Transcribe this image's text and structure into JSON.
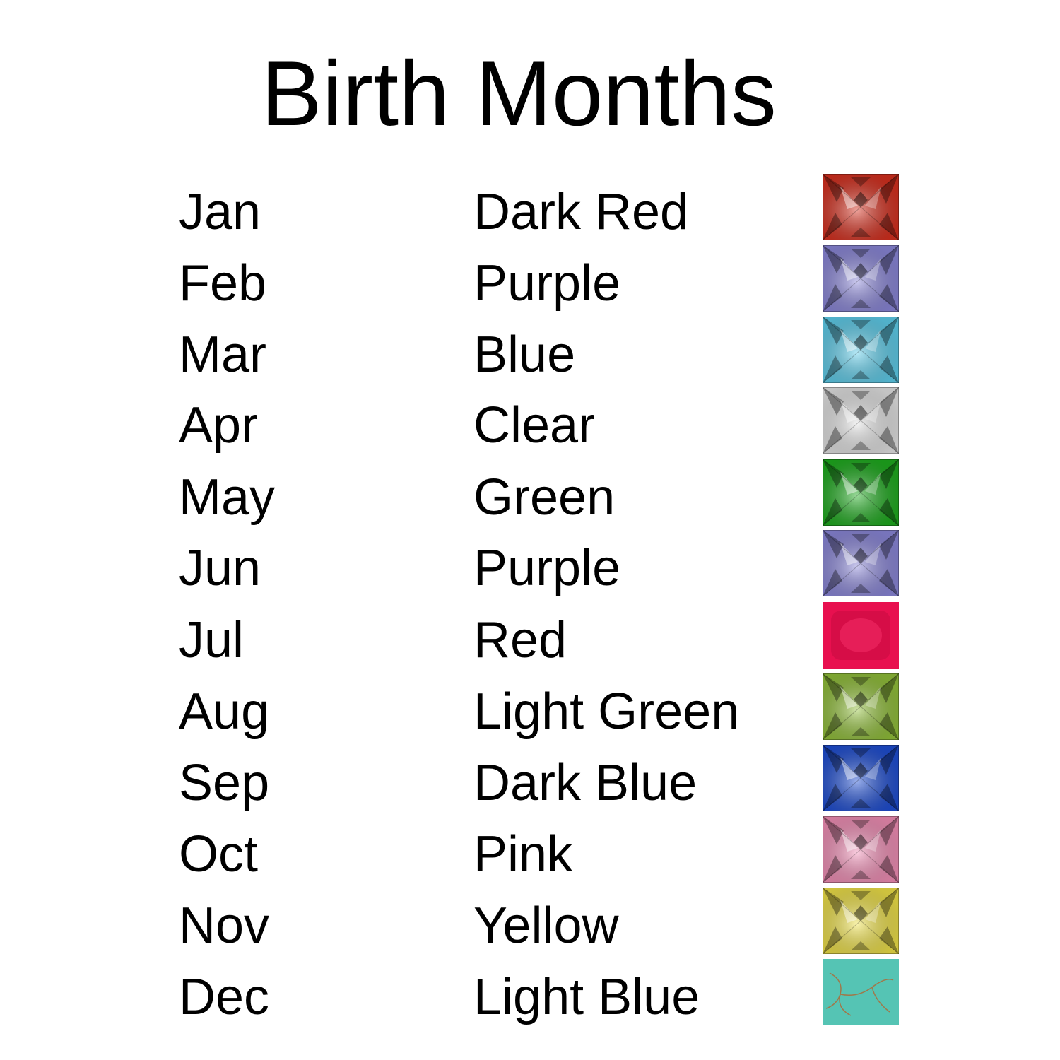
{
  "title": "Birth Months",
  "rows": [
    {
      "month": "Jan",
      "color": "Dark Red",
      "gem_color": "#d9301f",
      "gem_style": "faceted"
    },
    {
      "month": "Feb",
      "color": "Purple",
      "gem_color": "#8c88dc",
      "gem_style": "faceted"
    },
    {
      "month": "Mar",
      "color": "Blue",
      "gem_color": "#5fd0ee",
      "gem_style": "faceted"
    },
    {
      "month": "Apr",
      "color": "Clear",
      "gem_color": "#e6e6e6",
      "gem_style": "faceted"
    },
    {
      "month": "May",
      "color": "Green",
      "gem_color": "#1fae1f",
      "gem_style": "faceted"
    },
    {
      "month": "Jun",
      "color": "Purple",
      "gem_color": "#8c88dc",
      "gem_style": "faceted"
    },
    {
      "month": "Jul",
      "color": "Red",
      "gem_color": "#e8104f",
      "gem_style": "cabochon"
    },
    {
      "month": "Aug",
      "color": "Light Green",
      "gem_color": "#93c23a",
      "gem_style": "faceted"
    },
    {
      "month": "Sep",
      "color": "Dark Blue",
      "gem_color": "#1f4fd6",
      "gem_style": "faceted"
    },
    {
      "month": "Oct",
      "color": "Pink",
      "gem_color": "#f590b8",
      "gem_style": "faceted"
    },
    {
      "month": "Nov",
      "color": "Yellow",
      "gem_color": "#f2e449",
      "gem_style": "faceted"
    },
    {
      "month": "Dec",
      "color": "Light Blue",
      "gem_color": "#55c4b4",
      "gem_style": "turquoise"
    }
  ]
}
